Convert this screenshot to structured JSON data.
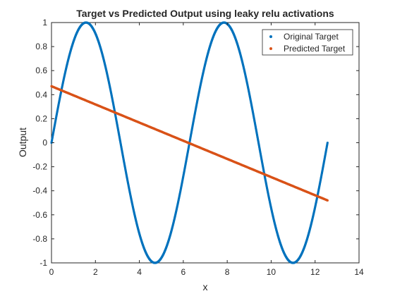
{
  "chart_data": {
    "type": "scatter",
    "title": "Target vs Predicted Output using leaky relu activations",
    "xlabel": "x",
    "ylabel": "Output",
    "xlim": [
      0,
      14
    ],
    "ylim": [
      -1,
      1
    ],
    "xticks": [
      0,
      2,
      4,
      6,
      8,
      10,
      12,
      14
    ],
    "xtick_labels": [
      "0",
      "2",
      "4",
      "6",
      "8",
      "10",
      "12",
      "14"
    ],
    "yticks": [
      -1,
      -0.8,
      -0.6,
      -0.4,
      -0.2,
      0,
      0.2,
      0.4,
      0.6,
      0.8,
      1
    ],
    "ytick_labels": [
      "-1",
      "-0.8",
      "-0.6",
      "-0.4",
      "-0.2",
      "0",
      "0.2",
      "0.4",
      "0.6",
      "0.8",
      "1"
    ],
    "grid": false,
    "legend_position": "top-right",
    "series": [
      {
        "name": "Original Target",
        "color": "#0072BD",
        "function": "sin(x)",
        "x_range": [
          0,
          12.566
        ]
      },
      {
        "name": "Predicted Target",
        "color": "#D95319",
        "function": "linear",
        "x_range": [
          0,
          12.566
        ],
        "y_at_start": 0.47,
        "y_at_end": -0.48
      }
    ]
  }
}
